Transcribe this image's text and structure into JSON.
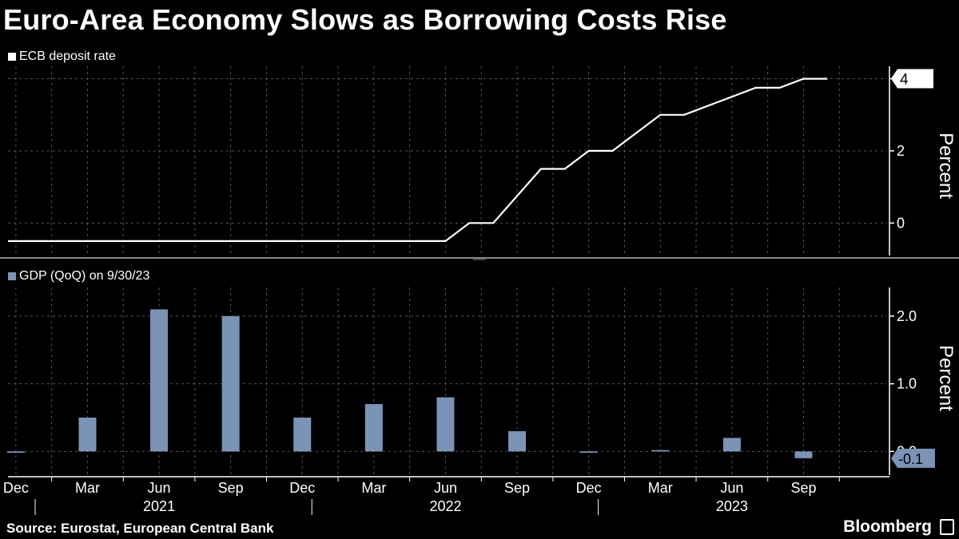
{
  "header": {
    "title": "Euro-Area Economy Slows as Borrowing Costs Rise"
  },
  "footer": {
    "source": "Source: Eurostat, European Central Bank",
    "brand": "Bloomberg"
  },
  "colors": {
    "background": "#000000",
    "line": "#ffffff",
    "bar": "#7b93b6",
    "grid": "#555555",
    "text": "#ffffff"
  },
  "chart_data": [
    {
      "type": "line",
      "legend": "ECB deposit rate",
      "ylabel": "Percent",
      "ylim": [
        -0.9,
        4.3
      ],
      "yticks": [
        0,
        2,
        4
      ],
      "last_value_label": "4",
      "x_index_range": [
        -0.33,
        36.5
      ],
      "points": [
        {
          "x": -0.33,
          "y": -0.5
        },
        {
          "x": 18.0,
          "y": -0.5
        },
        {
          "x": 19.0,
          "y": 0.0
        },
        {
          "x": 20.0,
          "y": 0.0
        },
        {
          "x": 22.0,
          "y": 1.5
        },
        {
          "x": 23.0,
          "y": 1.5
        },
        {
          "x": 24.0,
          "y": 2.0
        },
        {
          "x": 25.0,
          "y": 2.0
        },
        {
          "x": 27.0,
          "y": 3.0
        },
        {
          "x": 28.0,
          "y": 3.0
        },
        {
          "x": 31.0,
          "y": 3.75
        },
        {
          "x": 32.0,
          "y": 3.75
        },
        {
          "x": 33.0,
          "y": 4.0
        },
        {
          "x": 34.0,
          "y": 4.0
        }
      ]
    },
    {
      "type": "bar",
      "legend": "GDP (QoQ) on 9/30/23",
      "ylabel": "Percent",
      "ylim": [
        -0.35,
        2.4
      ],
      "yticks": [
        0.0,
        1.0,
        2.0
      ],
      "ytick_labels": [
        "0.0",
        "1.0",
        "2.0"
      ],
      "last_value_label": "-0.1",
      "x_index_range": [
        -0.33,
        36.5
      ],
      "bars": [
        {
          "x": 0,
          "label": "Q4 2020",
          "value": -0.02
        },
        {
          "x": 3,
          "label": "Q1 2021",
          "value": 0.5
        },
        {
          "x": 6,
          "label": "Q2 2021",
          "value": 2.1
        },
        {
          "x": 9,
          "label": "Q3 2021",
          "value": 2.0
        },
        {
          "x": 12,
          "label": "Q4 2021",
          "value": 0.5
        },
        {
          "x": 15,
          "label": "Q1 2022",
          "value": 0.7
        },
        {
          "x": 18,
          "label": "Q2 2022",
          "value": 0.8
        },
        {
          "x": 21,
          "label": "Q3 2022",
          "value": 0.3
        },
        {
          "x": 24,
          "label": "Q4 2022",
          "value": -0.02
        },
        {
          "x": 27,
          "label": "Q1 2023",
          "value": 0.02
        },
        {
          "x": 30,
          "label": "Q2 2023",
          "value": 0.2
        },
        {
          "x": 33,
          "label": "Q3 2023",
          "value": -0.1
        }
      ]
    }
  ],
  "x_axis": {
    "month_ticks": [
      {
        "x": 0,
        "label": "Dec"
      },
      {
        "x": 3,
        "label": "Mar"
      },
      {
        "x": 6,
        "label": "Jun"
      },
      {
        "x": 9,
        "label": "Sep"
      },
      {
        "x": 12,
        "label": "Dec"
      },
      {
        "x": 15,
        "label": "Mar"
      },
      {
        "x": 18,
        "label": "Jun"
      },
      {
        "x": 21,
        "label": "Sep"
      },
      {
        "x": 24,
        "label": "Dec"
      },
      {
        "x": 27,
        "label": "Mar"
      },
      {
        "x": 30,
        "label": "Jun"
      },
      {
        "x": 33,
        "label": "Sep"
      }
    ],
    "year_labels": [
      {
        "x": 6,
        "label": "2021"
      },
      {
        "x": 18,
        "label": "2022"
      },
      {
        "x": 30,
        "label": "2023"
      }
    ],
    "year_dividers": [
      0.0,
      12.0,
      24.0
    ]
  }
}
